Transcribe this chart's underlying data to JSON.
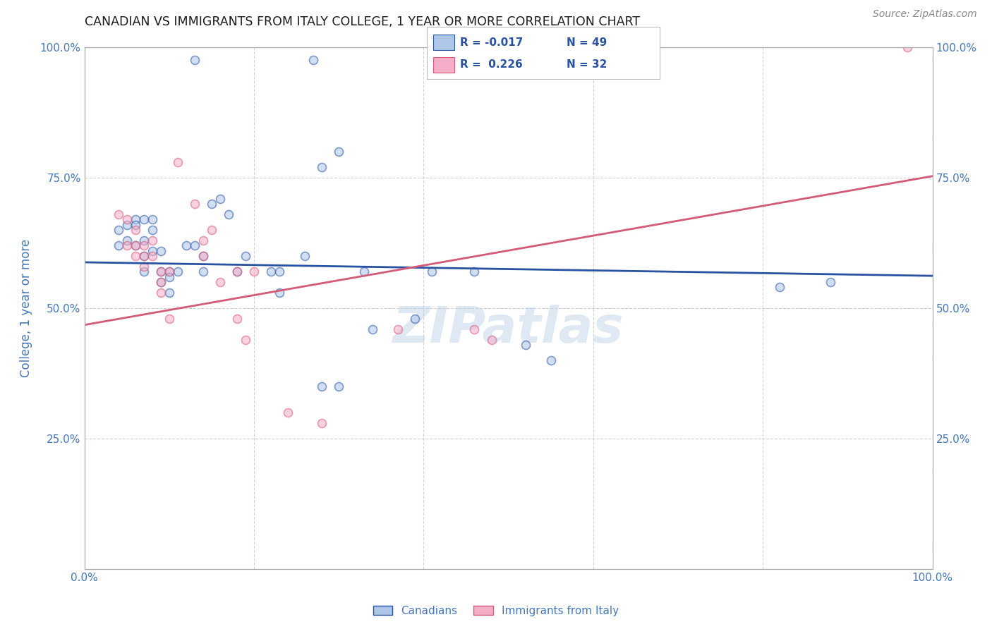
{
  "title": "CANADIAN VS IMMIGRANTS FROM ITALY COLLEGE, 1 YEAR OR MORE CORRELATION CHART",
  "source": "Source: ZipAtlas.com",
  "ylabel": "College, 1 year or more",
  "watermark": "ZIPatlas",
  "legend_blue_label": "Canadians",
  "legend_pink_label": "Immigrants from Italy",
  "xlim": [
    0.0,
    1.0
  ],
  "ylim": [
    0.0,
    1.0
  ],
  "xticks": [
    0.0,
    0.2,
    0.4,
    0.6,
    0.8,
    1.0
  ],
  "yticks": [
    0.0,
    0.25,
    0.5,
    0.75,
    1.0
  ],
  "blue_x": [
    0.13,
    0.27,
    0.04,
    0.04,
    0.05,
    0.05,
    0.06,
    0.06,
    0.06,
    0.07,
    0.07,
    0.07,
    0.07,
    0.08,
    0.08,
    0.08,
    0.09,
    0.09,
    0.09,
    0.1,
    0.1,
    0.1,
    0.11,
    0.12,
    0.13,
    0.14,
    0.14,
    0.15,
    0.16,
    0.17,
    0.18,
    0.19,
    0.22,
    0.23,
    0.23,
    0.26,
    0.28,
    0.3,
    0.33,
    0.34,
    0.39,
    0.41,
    0.46,
    0.52,
    0.55,
    0.28,
    0.3,
    0.82,
    0.88
  ],
  "blue_y": [
    0.975,
    0.975,
    0.62,
    0.65,
    0.63,
    0.66,
    0.67,
    0.66,
    0.62,
    0.67,
    0.63,
    0.6,
    0.57,
    0.67,
    0.65,
    0.61,
    0.61,
    0.57,
    0.55,
    0.57,
    0.56,
    0.53,
    0.57,
    0.62,
    0.62,
    0.6,
    0.57,
    0.7,
    0.71,
    0.68,
    0.57,
    0.6,
    0.57,
    0.57,
    0.53,
    0.6,
    0.77,
    0.8,
    0.57,
    0.46,
    0.48,
    0.57,
    0.57,
    0.43,
    0.4,
    0.35,
    0.35,
    0.54,
    0.55
  ],
  "pink_x": [
    0.04,
    0.05,
    0.05,
    0.06,
    0.06,
    0.06,
    0.07,
    0.07,
    0.07,
    0.08,
    0.08,
    0.09,
    0.09,
    0.09,
    0.1,
    0.1,
    0.11,
    0.13,
    0.14,
    0.14,
    0.15,
    0.16,
    0.18,
    0.18,
    0.19,
    0.2,
    0.24,
    0.28,
    0.37,
    0.46,
    0.48,
    0.97
  ],
  "pink_y": [
    0.68,
    0.67,
    0.62,
    0.65,
    0.62,
    0.6,
    0.62,
    0.6,
    0.58,
    0.63,
    0.6,
    0.57,
    0.55,
    0.53,
    0.57,
    0.48,
    0.78,
    0.7,
    0.63,
    0.6,
    0.65,
    0.55,
    0.57,
    0.48,
    0.44,
    0.57,
    0.3,
    0.28,
    0.46,
    0.46,
    0.44,
    1.0
  ],
  "blue_line_x": [
    0.0,
    1.0
  ],
  "blue_line_y": [
    0.588,
    0.562
  ],
  "pink_line_x": [
    0.0,
    1.0
  ],
  "pink_line_y": [
    0.468,
    0.753
  ],
  "blue_color": "#aec6e8",
  "pink_color": "#f4aec8",
  "blue_line_color": "#2952a3",
  "pink_line_color": "#d45a78",
  "grid_color": "#cccccc",
  "bg_color": "#ffffff",
  "title_color": "#1a1a1a",
  "axis_label_color": "#4477bb",
  "marker_size": 75,
  "marker_alpha": 0.55,
  "marker_lw": 1.2
}
